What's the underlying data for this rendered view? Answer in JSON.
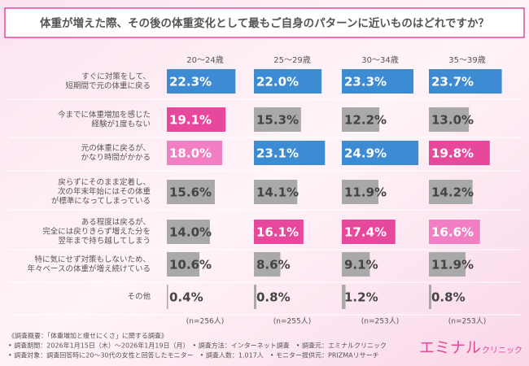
{
  "chart_data": {
    "type": "bar",
    "title": "体重が増えた際、その後の体重変化として最もご自身のパターンに近いものはどれですか？",
    "categories": [
      [
        "すぐに対策をして、",
        "短期間で元の体重に戻る"
      ],
      [
        "今までに体重増加を感じた",
        "経験が1度もない"
      ],
      [
        "元の体重に戻るが、",
        "かなり時間がかかる"
      ],
      [
        "戻らずにそのまま定着し、",
        "次の年末年始にはその体重",
        "が標準になってしまっている"
      ],
      [
        "ある程度は戻るが、",
        "完全には戻りきらず増えた分を",
        "翌年まで持ち越してしまう"
      ],
      [
        "特に気にせず対策もしないため、",
        "年々ベースの体重が増え続けている"
      ],
      [
        "その他"
      ]
    ],
    "series": [
      {
        "name": "20〜24歳",
        "n": "(n=256人)",
        "values": [
          22.3,
          19.1,
          18.0,
          15.6,
          14.0,
          10.6,
          0.4
        ],
        "value_labels": [
          "22.3%",
          "19.1%",
          "18.0%",
          "15.6%",
          "14.0%",
          "10.6%",
          "0.4%"
        ],
        "colors": [
          "#3d8bd3",
          "#e8489c",
          "#f27fc4",
          "#a9a9a9",
          "#a9a9a9",
          "#a9a9a9",
          "#a9a9a9"
        ]
      },
      {
        "name": "25〜29歳",
        "n": "(n=255人)",
        "values": [
          22.0,
          15.3,
          23.1,
          14.1,
          16.1,
          8.6,
          0.8
        ],
        "value_labels": [
          "22.0%",
          "15.3%",
          "23.1%",
          "14.1%",
          "16.1%",
          "8.6%",
          "0.8%"
        ],
        "colors": [
          "#3d8bd3",
          "#a9a9a9",
          "#3d8bd3",
          "#a9a9a9",
          "#e8489c",
          "#a9a9a9",
          "#a9a9a9"
        ]
      },
      {
        "name": "30〜34歳",
        "n": "(n=253人)",
        "values": [
          23.3,
          12.2,
          24.9,
          11.9,
          17.4,
          9.1,
          1.2
        ],
        "value_labels": [
          "23.3%",
          "12.2%",
          "24.9%",
          "11.9%",
          "17.4%",
          "9.1%",
          "1.2%"
        ],
        "colors": [
          "#3d8bd3",
          "#a9a9a9",
          "#3d8bd3",
          "#a9a9a9",
          "#e8489c",
          "#a9a9a9",
          "#a9a9a9"
        ]
      },
      {
        "name": "35〜39歳",
        "n": "(n=253人)",
        "values": [
          23.7,
          13.0,
          19.8,
          14.2,
          16.6,
          11.9,
          0.8
        ],
        "value_labels": [
          "23.7%",
          "13.0%",
          "19.8%",
          "14.2%",
          "16.6%",
          "11.9%",
          "0.8%"
        ],
        "colors": [
          "#3d8bd3",
          "#a9a9a9",
          "#e8489c",
          "#a9a9a9",
          "#f27fc4",
          "#a9a9a9",
          "#a9a9a9"
        ]
      }
    ],
    "notes": [
      "《調査概要：「体重増加と痩せにくさ」に関する調査》",
      "• 調査期間：2026年1月15日（木）〜2026年1月19日（月）　• 調査方法：インターネット調査　• 調査元：エミナルクリニック",
      "• 調査対象：調査回答時に20〜30代の女性と回答したモニター　• 調査人数：1,017人　• モニター提供元：PRIZMAリサーチ"
    ],
    "logo": {
      "main": "エミナル",
      "sub": "クリニック"
    }
  }
}
